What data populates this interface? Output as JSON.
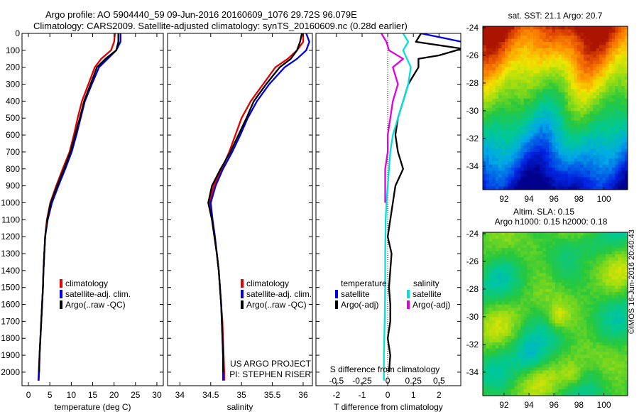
{
  "header": {
    "line1": "Argo profile: AO 5904440_59 09-Jun-2016 20160609_1076 29.72S 96.079E",
    "line2": "Climatology: CARS2009. Satellite-adjusted climatology: synTS_20160609.nc (0.28d earlier)"
  },
  "stamp": "©IMOS 16-Jun-2016 20:40:43",
  "colors": {
    "climatology": "#e00000",
    "satellite": "#0000e0",
    "argo": "#000000",
    "cyan": "#00e0e0",
    "magenta": "#e000e0"
  },
  "chart_data": [
    {
      "id": "temperature",
      "type": "line",
      "xlabel": "temperature (deg C)",
      "ylabel": "",
      "xlim": [
        -1.5,
        31.5
      ],
      "ylim": [
        2080,
        0
      ],
      "xticks": [
        0,
        5,
        10,
        15,
        20,
        25,
        30
      ],
      "yticks": [
        0,
        100,
        200,
        300,
        400,
        500,
        600,
        700,
        800,
        900,
        1000,
        1100,
        1200,
        1300,
        1400,
        1500,
        1600,
        1700,
        1800,
        1900,
        2000
      ],
      "legend": [
        "climatology",
        "satellite-adj. clim.",
        "Argo(..raw -QC)"
      ],
      "series": [
        {
          "name": "climatology",
          "color": "#e00000",
          "points": [
            [
              20.2,
              0
            ],
            [
              20.0,
              50
            ],
            [
              19.3,
              100
            ],
            [
              17.0,
              150
            ],
            [
              15.5,
              200
            ],
            [
              14.0,
              300
            ],
            [
              12.5,
              400
            ],
            [
              11.5,
              500
            ],
            [
              10.6,
              600
            ],
            [
              9.6,
              700
            ],
            [
              8.0,
              800
            ],
            [
              6.5,
              900
            ],
            [
              5.1,
              1000
            ],
            [
              4.3,
              1100
            ],
            [
              3.9,
              1200
            ],
            [
              3.7,
              1300
            ],
            [
              3.5,
              1400
            ],
            [
              3.4,
              1500
            ],
            [
              3.2,
              1600
            ],
            [
              3.0,
              1700
            ],
            [
              2.8,
              1800
            ],
            [
              2.6,
              1900
            ],
            [
              2.4,
              2000
            ],
            [
              2.3,
              2050
            ]
          ]
        },
        {
          "name": "satellite-adj. clim.",
          "color": "#0000e0",
          "points": [
            [
              21.5,
              0
            ],
            [
              21.5,
              50
            ],
            [
              20.5,
              100
            ],
            [
              18.5,
              150
            ],
            [
              16.5,
              200
            ],
            [
              14.8,
              300
            ],
            [
              13.2,
              400
            ],
            [
              12.2,
              500
            ],
            [
              11.2,
              600
            ],
            [
              10.1,
              700
            ],
            [
              8.6,
              800
            ],
            [
              7.0,
              900
            ],
            [
              5.5,
              1000
            ],
            [
              4.5,
              1100
            ],
            [
              3.9,
              1200
            ],
            [
              3.7,
              1300
            ],
            [
              3.5,
              1400
            ],
            [
              3.4,
              1500
            ],
            [
              3.2,
              1600
            ],
            [
              3.0,
              1700
            ],
            [
              2.8,
              1800
            ],
            [
              2.6,
              1900
            ],
            [
              2.5,
              2000
            ],
            [
              2.4,
              2050
            ]
          ]
        },
        {
          "name": "Argo(..raw -QC)",
          "color": "#000000",
          "points": [
            [
              21.0,
              0
            ],
            [
              21.0,
              50
            ],
            [
              20.5,
              100
            ],
            [
              18.0,
              150
            ],
            [
              16.0,
              200
            ],
            [
              14.5,
              300
            ],
            [
              13.0,
              400
            ],
            [
              12.0,
              500
            ],
            [
              10.9,
              600
            ],
            [
              9.8,
              700
            ],
            [
              8.3,
              800
            ],
            [
              6.7,
              900
            ],
            [
              5.2,
              1000
            ],
            [
              4.4,
              1100
            ],
            [
              3.9,
              1200
            ],
            [
              3.7,
              1300
            ],
            [
              3.5,
              1400
            ],
            [
              3.4,
              1500
            ],
            [
              3.2,
              1600
            ],
            [
              3.0,
              1700
            ],
            [
              2.8,
              1800
            ],
            [
              2.6,
              1900
            ],
            [
              2.5,
              2000
            ]
          ]
        }
      ]
    },
    {
      "id": "salinity",
      "type": "line",
      "xlabel": "salinity",
      "xlim": [
        33.8,
        36.15
      ],
      "ylim": [
        2080,
        0
      ],
      "xticks": [
        34,
        34.5,
        35,
        35.5,
        36
      ],
      "legend": [
        "climatology",
        "satellite-adj. clim.",
        "Argo(..raw -QC)"
      ],
      "series": [
        {
          "name": "climatology",
          "color": "#e00000",
          "points": [
            [
              36.0,
              0
            ],
            [
              36.0,
              50
            ],
            [
              35.9,
              100
            ],
            [
              35.75,
              150
            ],
            [
              35.55,
              200
            ],
            [
              35.35,
              300
            ],
            [
              35.15,
              400
            ],
            [
              35.0,
              500
            ],
            [
              34.9,
              600
            ],
            [
              34.8,
              700
            ],
            [
              34.68,
              800
            ],
            [
              34.55,
              900
            ],
            [
              34.48,
              1000
            ],
            [
              34.52,
              1100
            ],
            [
              34.56,
              1200
            ],
            [
              34.6,
              1300
            ],
            [
              34.63,
              1400
            ],
            [
              34.65,
              1500
            ],
            [
              34.67,
              1600
            ],
            [
              34.69,
              1700
            ],
            [
              34.7,
              1800
            ],
            [
              34.71,
              1900
            ],
            [
              34.72,
              2000
            ],
            [
              34.72,
              2050
            ]
          ]
        },
        {
          "name": "satellite-adj. clim.",
          "color": "#0000e0",
          "points": [
            [
              36.05,
              0
            ],
            [
              36.1,
              50
            ],
            [
              36.05,
              100
            ],
            [
              35.9,
              150
            ],
            [
              35.7,
              200
            ],
            [
              35.45,
              300
            ],
            [
              35.25,
              400
            ],
            [
              35.1,
              500
            ],
            [
              34.98,
              600
            ],
            [
              34.85,
              700
            ],
            [
              34.7,
              800
            ],
            [
              34.58,
              900
            ],
            [
              34.5,
              1000
            ],
            [
              34.53,
              1100
            ],
            [
              34.57,
              1200
            ],
            [
              34.6,
              1300
            ],
            [
              34.63,
              1400
            ],
            [
              34.65,
              1500
            ],
            [
              34.67,
              1600
            ],
            [
              34.68,
              1700
            ],
            [
              34.69,
              1800
            ],
            [
              34.7,
              1900
            ],
            [
              34.7,
              2000
            ],
            [
              34.7,
              2050
            ]
          ]
        },
        {
          "name": "Argo(..raw -QC)",
          "color": "#000000",
          "points": [
            [
              35.98,
              0
            ],
            [
              35.95,
              50
            ],
            [
              35.9,
              100
            ],
            [
              35.8,
              150
            ],
            [
              35.62,
              200
            ],
            [
              35.4,
              300
            ],
            [
              35.2,
              400
            ],
            [
              35.08,
              500
            ],
            [
              34.95,
              600
            ],
            [
              34.82,
              700
            ],
            [
              34.66,
              800
            ],
            [
              34.52,
              900
            ],
            [
              34.46,
              1000
            ],
            [
              34.52,
              1100
            ],
            [
              34.56,
              1200
            ],
            [
              34.6,
              1300
            ],
            [
              34.63,
              1400
            ],
            [
              34.65,
              1500
            ],
            [
              34.67,
              1600
            ],
            [
              34.68,
              1700
            ],
            [
              34.69,
              1800
            ],
            [
              34.7,
              1900
            ],
            [
              34.7,
              2000
            ]
          ]
        }
      ],
      "annotation": [
        "US ARGO PROJECT",
        "PI: STEPHEN RISER"
      ]
    },
    {
      "id": "difference",
      "type": "line",
      "xlabel": "T difference from climatology",
      "top_label": "S difference from climatology",
      "xlim": [
        -2.8,
        2.85
      ],
      "ylim": [
        2080,
        0
      ],
      "xticks": [
        -2,
        -1,
        0,
        1,
        2
      ],
      "top_xticks": [
        {
          "label": "-0.5",
          "t": -2
        },
        {
          "label": "-0.25",
          "t": -1
        },
        {
          "label": "0",
          "t": 0
        },
        {
          "label": "0.25",
          "t": 1
        },
        {
          "label": "0.5",
          "t": 2
        }
      ],
      "legend_titles": [
        "temperature",
        "salinity"
      ],
      "legend": [
        "satellite",
        "Argo(-adj)",
        "satellite",
        "Argo(-adj)"
      ],
      "series": [
        {
          "name": "temperature satellite",
          "color": "#0000e0",
          "points": [
            [
              1.3,
              0
            ],
            [
              2.9,
              50
            ],
            [
              2.9,
              100
            ]
          ]
        },
        {
          "name": "temperature Argo(-adj)",
          "color": "#000000",
          "points": [
            [
              1.3,
              0
            ],
            [
              1.1,
              50
            ],
            [
              2.9,
              90
            ],
            [
              2.0,
              130
            ],
            [
              1.2,
              150
            ],
            [
              1.2,
              200
            ],
            [
              0.8,
              300
            ],
            [
              0.6,
              400
            ],
            [
              0.4,
              500
            ],
            [
              0.3,
              600
            ],
            [
              0.4,
              700
            ],
            [
              0.6,
              800
            ],
            [
              0.3,
              900
            ],
            [
              0.2,
              1000
            ],
            [
              0.1,
              1100
            ],
            [
              0.0,
              1200
            ],
            [
              0.15,
              1300
            ],
            [
              0.1,
              1400
            ],
            [
              0.05,
              1500
            ],
            [
              0.1,
              1600
            ],
            [
              0.1,
              1700
            ],
            [
              0.0,
              1800
            ],
            [
              0.1,
              1900
            ],
            [
              0.05,
              2000
            ]
          ]
        },
        {
          "name": "salinity satellite",
          "color": "#00e0e0",
          "points": [
            [
              0.6,
              0
            ],
            [
              0.8,
              50
            ],
            [
              0.6,
              100
            ],
            [
              0.9,
              200
            ],
            [
              0.8,
              300
            ],
            [
              0.6,
              400
            ],
            [
              0.4,
              500
            ],
            [
              0.2,
              600
            ],
            [
              0.1,
              700
            ],
            [
              0.05,
              800
            ],
            [
              0.0,
              900
            ],
            [
              -0.05,
              1000
            ],
            [
              -0.08,
              1100
            ],
            [
              -0.1,
              1300
            ],
            [
              -0.1,
              1500
            ],
            [
              -0.12,
              1700
            ],
            [
              -0.15,
              1900
            ],
            [
              -0.15,
              2050
            ]
          ]
        },
        {
          "name": "salinity Argo(-adj)",
          "color": "#e000e0",
          "points": [
            [
              -0.25,
              0
            ],
            [
              -0.05,
              50
            ],
            [
              0.05,
              100
            ],
            [
              0.6,
              150
            ],
            [
              0.2,
              200
            ],
            [
              0.4,
              300
            ],
            [
              0.2,
              400
            ],
            [
              0.1,
              500
            ],
            [
              0.0,
              600
            ],
            [
              0.0,
              700
            ],
            [
              -0.1,
              800
            ],
            [
              -0.1,
              900
            ],
            [
              -0.1,
              1000
            ]
          ]
        }
      ]
    },
    {
      "id": "sst_map",
      "type": "heatmap",
      "title": "sat. SST: 21.1 Argo: 20.7",
      "xticks": [
        92,
        94,
        96,
        98,
        100
      ],
      "yticks": [
        -24,
        -26,
        -28,
        -30,
        -32,
        -34
      ],
      "xlim": [
        90.3,
        101.9
      ],
      "ylim": [
        -35.7,
        -23.9
      ],
      "marker": [
        96.079,
        -29.72
      ]
    },
    {
      "id": "sla_map",
      "type": "heatmap",
      "title": [
        "Altim. SLA: 0.15",
        "Argo h1000: 0.15 h2000: 0.18"
      ],
      "xticks": [
        92,
        94,
        96,
        98,
        100
      ],
      "yticks": [
        -24,
        -26,
        -28,
        -30,
        -32,
        -34
      ],
      "xlim": [
        90.3,
        101.9
      ],
      "ylim": [
        -35.7,
        -23.9
      ]
    }
  ]
}
